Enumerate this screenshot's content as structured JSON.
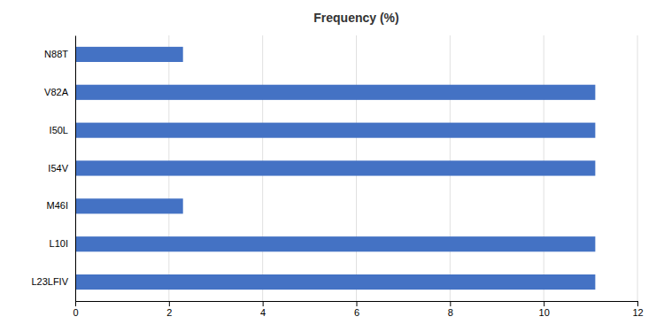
{
  "chart_data": {
    "type": "bar",
    "orientation": "horizontal",
    "title": "Frequency (%)",
    "categories": [
      "L23LFIV",
      "L10I",
      "M46I",
      "I54V",
      "I50L",
      "V82A",
      "N88T"
    ],
    "values": [
      11.1,
      11.1,
      2.3,
      11.1,
      11.1,
      11.1,
      2.3
    ],
    "color": "#4472C4",
    "xlim": [
      0,
      12
    ],
    "xticks": [
      0,
      2,
      4,
      6,
      8,
      10,
      12
    ],
    "grid": true
  }
}
